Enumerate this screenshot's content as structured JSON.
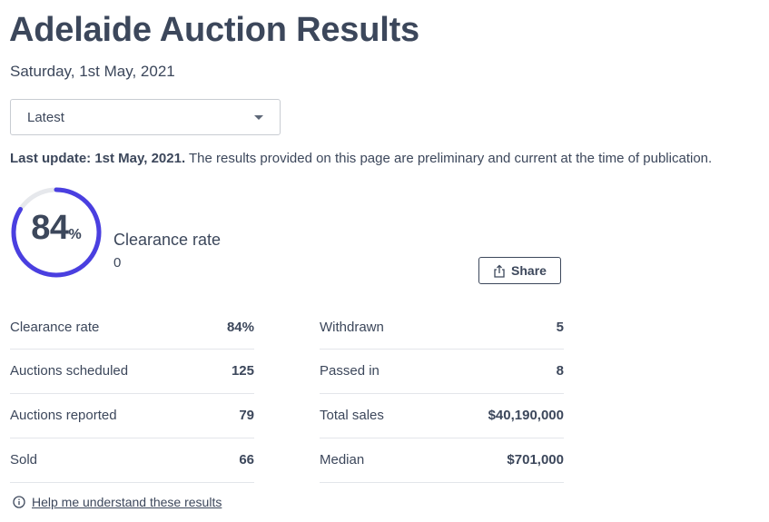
{
  "header": {
    "title": "Adelaide Auction Results",
    "date": "Saturday, 1st May, 2021"
  },
  "filter": {
    "selected": "Latest"
  },
  "update": {
    "label": "Last update: 1st May, 2021.",
    "text": " The results provided on this page are preliminary and current at the time of publication."
  },
  "clearance": {
    "value": "84",
    "unit": "%",
    "fraction": 0.84,
    "label": "Clearance rate",
    "sub": "0",
    "ring_color": "#4a3fe0",
    "track_color": "#e6e8ec"
  },
  "share": {
    "label": "Share",
    "icon": "share-icon"
  },
  "stats_left": [
    {
      "label": "Clearance rate",
      "value": "84%"
    },
    {
      "label": "Auctions scheduled",
      "value": "125"
    },
    {
      "label": "Auctions reported",
      "value": "79"
    },
    {
      "label": "Sold",
      "value": "66"
    }
  ],
  "stats_right": [
    {
      "label": "Withdrawn",
      "value": "5"
    },
    {
      "label": "Passed in",
      "value": "8"
    },
    {
      "label": "Total sales",
      "value": "$40,190,000"
    },
    {
      "label": "Median",
      "value": "$701,000"
    }
  ],
  "help": {
    "icon": "info-icon",
    "label": "Help me understand these results"
  }
}
